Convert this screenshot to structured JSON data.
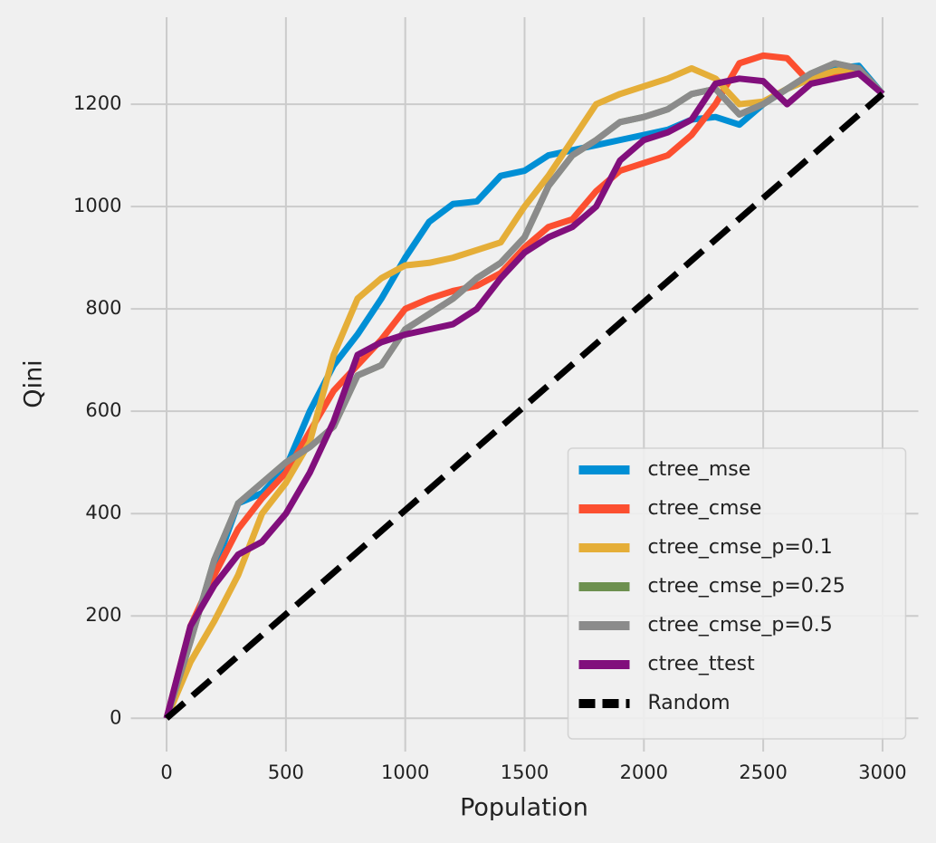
{
  "chart_data": {
    "type": "line",
    "x_label": "Population",
    "y_label": "Qini",
    "x": [
      0,
      100,
      200,
      300,
      400,
      500,
      600,
      700,
      800,
      900,
      1000,
      1100,
      1200,
      1300,
      1400,
      1500,
      1600,
      1700,
      1800,
      1900,
      2000,
      2100,
      2200,
      2300,
      2400,
      2500,
      2600,
      2700,
      2800,
      2900,
      3000
    ],
    "series": [
      {
        "name": "ctree_mse",
        "color": "#008fd5",
        "values": [
          0,
          170,
          290,
          420,
          440,
          490,
          600,
          690,
          750,
          820,
          900,
          970,
          1005,
          1010,
          1060,
          1070,
          1100,
          1110,
          1120,
          1130,
          1140,
          1150,
          1170,
          1175,
          1160,
          1200,
          1230,
          1250,
          1270,
          1275,
          1220
        ]
      },
      {
        "name": "ctree_cmse",
        "color": "#fc4f30",
        "values": [
          0,
          180,
          280,
          370,
          430,
          480,
          560,
          640,
          690,
          740,
          800,
          820,
          835,
          845,
          870,
          920,
          960,
          975,
          1030,
          1070,
          1085,
          1100,
          1140,
          1200,
          1280,
          1295,
          1290,
          1240,
          1255,
          1265,
          1220
        ]
      },
      {
        "name": "ctree_cmse_p=0.1",
        "color": "#e5ae38",
        "values": [
          0,
          110,
          190,
          280,
          400,
          460,
          540,
          710,
          820,
          860,
          885,
          890,
          900,
          915,
          930,
          1000,
          1060,
          1130,
          1200,
          1220,
          1235,
          1250,
          1270,
          1250,
          1200,
          1205,
          1230,
          1250,
          1265,
          1270,
          1220
        ]
      },
      {
        "name": "ctree_cmse_p=0.25",
        "color": "#6d904f",
        "values": [
          0,
          150,
          310,
          420,
          460,
          500,
          530,
          570,
          670,
          690,
          760,
          790,
          820,
          860,
          890,
          940,
          1040,
          1100,
          1130,
          1165,
          1175,
          1190,
          1220,
          1230,
          1180,
          1200,
          1230,
          1260,
          1280,
          1270,
          1220
        ]
      },
      {
        "name": "ctree_cmse_p=0.5",
        "color": "#8b8b8b",
        "values": [
          0,
          150,
          310,
          420,
          460,
          500,
          530,
          570,
          670,
          690,
          760,
          790,
          820,
          860,
          890,
          940,
          1040,
          1100,
          1130,
          1165,
          1175,
          1190,
          1220,
          1230,
          1180,
          1200,
          1230,
          1260,
          1280,
          1270,
          1220
        ]
      },
      {
        "name": "ctree_ttest",
        "color": "#810f7c",
        "values": [
          0,
          180,
          260,
          320,
          345,
          400,
          480,
          580,
          710,
          735,
          750,
          760,
          770,
          800,
          860,
          910,
          940,
          960,
          1000,
          1090,
          1130,
          1145,
          1170,
          1240,
          1250,
          1245,
          1200,
          1240,
          1250,
          1260,
          1220
        ]
      },
      {
        "name": "Random",
        "color": "#000000",
        "dashed": true,
        "x": [
          0,
          3000
        ],
        "values": [
          0,
          1220
        ]
      }
    ],
    "xlim": [
      -150,
      3150
    ],
    "ylim": [
      -65,
      1370
    ],
    "xticks": [
      0,
      500,
      1000,
      1500,
      2000,
      2500,
      3000
    ],
    "yticks": [
      0,
      200,
      400,
      600,
      800,
      1000,
      1200
    ],
    "grid": true,
    "legend": "lower right"
  }
}
